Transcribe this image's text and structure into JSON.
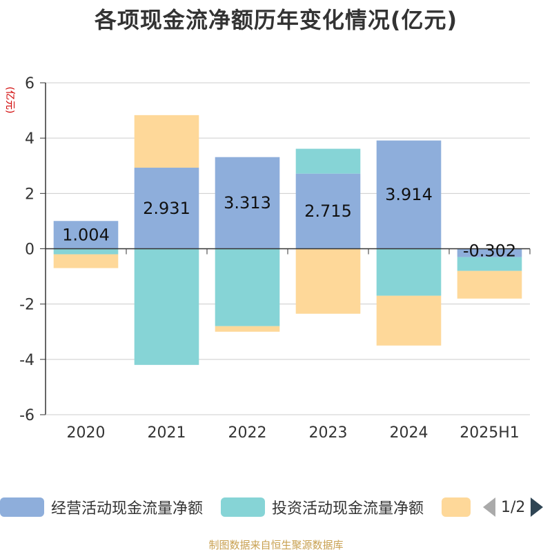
{
  "title": "各项现金流净额历年变化情况(亿元)",
  "source_note": "制图数据来自恒生聚源数据库",
  "legend": {
    "items": [
      {
        "label": "经营活动现金流量净额",
        "color": "#8eaedb"
      },
      {
        "label": "投资活动现金流量净额",
        "color": "#86d4d6"
      },
      {
        "label": "",
        "color": "#fed899"
      }
    ],
    "pager": "1/2"
  },
  "chart_data": {
    "type": "bar",
    "stacked": true,
    "ylabel": "(亿元)",
    "ylim": [
      -6,
      6
    ],
    "yticks": [
      -6,
      -4,
      -2,
      0,
      2,
      4,
      6
    ],
    "grid": true,
    "legend_position": "bottom",
    "categories": [
      "2020",
      "2021",
      "2022",
      "2023",
      "2024",
      "2025H1"
    ],
    "series": [
      {
        "name": "经营活动现金流量净额",
        "color": "#8eaedb",
        "values": [
          1.004,
          2.931,
          3.313,
          2.715,
          3.914,
          -0.302
        ],
        "labels": [
          "1.004",
          "2.931",
          "3.313",
          "2.715",
          "3.914",
          "-0.302"
        ]
      },
      {
        "name": "投资活动现金流量净额",
        "color": "#86d4d6",
        "values": [
          -0.2,
          -4.2,
          -2.8,
          0.9,
          -1.7,
          -0.5
        ]
      },
      {
        "name": "",
        "color": "#fed899",
        "values": [
          -0.5,
          1.9,
          -0.2,
          -2.35,
          -1.8,
          -1.0
        ]
      }
    ]
  }
}
